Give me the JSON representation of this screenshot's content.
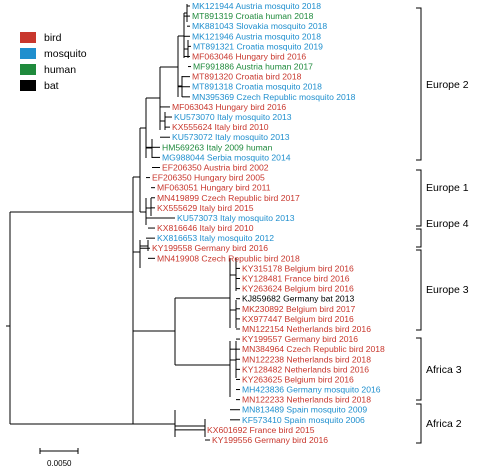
{
  "colors": {
    "bird": "#c8372d",
    "mosquito": "#1f8fce",
    "human": "#1f8a3c",
    "bat": "#000000"
  },
  "legend": [
    {
      "key": "bird",
      "label": "bird"
    },
    {
      "key": "mosquito",
      "label": "mosquito"
    },
    {
      "key": "human",
      "label": "human"
    },
    {
      "key": "bat",
      "label": "bat"
    }
  ],
  "scale_bar": {
    "label": "0.0050"
  },
  "clades": [
    {
      "label": "Europe 2"
    },
    {
      "label": "Europe 1"
    },
    {
      "label": "Europe 4"
    },
    {
      "label": "Europe 3"
    },
    {
      "label": "Africa 3"
    },
    {
      "label": "Africa 2"
    }
  ],
  "leaves": [
    {
      "text": "MK121944 Austria mosquito 2018",
      "host": "mosquito"
    },
    {
      "text": "MT891319 Croatia human 2018",
      "host": "human"
    },
    {
      "text": "MK881043 Slovakia mosquito 2018",
      "host": "mosquito"
    },
    {
      "text": "MK121946 Austria mosquito 2018",
      "host": "mosquito"
    },
    {
      "text": "MT891321 Croatia mosquito 2019",
      "host": "mosquito"
    },
    {
      "text": "MF063046 Hungary bird 2016",
      "host": "bird"
    },
    {
      "text": "MF991886 Austria human 2017",
      "host": "human"
    },
    {
      "text": "MT891320 Croatia bird 2018",
      "host": "bird"
    },
    {
      "text": "MT891318 Croatia mosquito 2018",
      "host": "mosquito"
    },
    {
      "text": "MN395369 Czech Republic mosquito 2018",
      "host": "mosquito"
    },
    {
      "text": "MF063043 Hungary bird 2016",
      "host": "bird"
    },
    {
      "text": "KU573070 Italy mosquito 2013",
      "host": "mosquito"
    },
    {
      "text": "KX555624 Italy bird 2010",
      "host": "bird"
    },
    {
      "text": "KU573072 Italy mosquito 2013",
      "host": "mosquito"
    },
    {
      "text": "HM569263 Italy 2009 human",
      "host": "human"
    },
    {
      "text": "MG988044 Serbia mosquito 2014",
      "host": "mosquito"
    },
    {
      "text": "EF206350 Austria bird 2002",
      "host": "bird"
    },
    {
      "text": "EF206350 Hungary bird 2005",
      "host": "bird"
    },
    {
      "text": "MF063051 Hungary bird 2011",
      "host": "bird"
    },
    {
      "text": "MN419899 Czech Republic bird 2017",
      "host": "bird"
    },
    {
      "text": "KX555629 Italy bird 2015",
      "host": "bird"
    },
    {
      "text": "KU573073 Italy mosquito 2013",
      "host": "mosquito"
    },
    {
      "text": "KX816646 Italy bird 2010",
      "host": "bird"
    },
    {
      "text": "KX816653 Italy mosquito 2012",
      "host": "mosquito"
    },
    {
      "text": "KY199558 Germany bird 2016",
      "host": "bird"
    },
    {
      "text": "MN419908 Czech Republic bird 2018",
      "host": "bird"
    },
    {
      "text": "KY315178 Belgium bird 2016",
      "host": "bird"
    },
    {
      "text": "KY128481 France bird 2016",
      "host": "bird"
    },
    {
      "text": "KY263624 Belgium bird 2016",
      "host": "bird"
    },
    {
      "text": "KJ859682 Germany bat 2013",
      "host": "bat"
    },
    {
      "text": "MK230892 Belgium bird 2017",
      "host": "bird"
    },
    {
      "text": "KX977447 Belgium bird 2016",
      "host": "bird"
    },
    {
      "text": "MN122154 Netherlands bird 2016",
      "host": "bird"
    },
    {
      "text": "KY199557 Germany bird 2016",
      "host": "bird"
    },
    {
      "text": "MN384964 Czech Republic bird 2018",
      "host": "bird"
    },
    {
      "text": "MN122238 Netherlands bird 2018",
      "host": "bird"
    },
    {
      "text": "KY128482 Netherlands bird 2016",
      "host": "bird"
    },
    {
      "text": "KY263625 Belgium bird 2016",
      "host": "bird"
    },
    {
      "text": "MH423836 Germany mosquito 2016",
      "host": "mosquito"
    },
    {
      "text": "MN122233 Netherlands bird 2018",
      "host": "bird"
    },
    {
      "text": "MN813489 Spain mosquito 2009",
      "host": "mosquito"
    },
    {
      "text": "KF573410 Spain mosquito 2006",
      "host": "mosquito"
    },
    {
      "text": "KX601692 France bird 2015",
      "host": "bird"
    },
    {
      "text": "KY199556 Germany bird 2016",
      "host": "bird"
    }
  ]
}
